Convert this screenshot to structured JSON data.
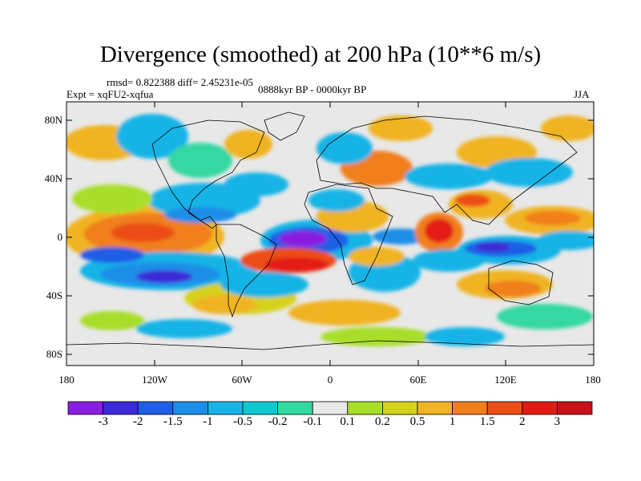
{
  "title": "Divergence (smoothed) at 200 hPa (10**6 m/s)",
  "stats": "rmsd= 0.822388 diff= 2.45231e-05",
  "experiment": "Expt = xqFU2-xqfua",
  "period": "0888kyr BP - 0000kyr BP",
  "season": "JJA",
  "lat_labels": [
    "80N",
    "40N",
    "0",
    "40S",
    "80S"
  ],
  "lon_labels": [
    "180",
    "120W",
    "60W",
    "0",
    "60E",
    "120E",
    "180"
  ],
  "colorbar": {
    "labels": [
      "-3",
      "-2",
      "-1.5",
      "-1",
      "-0.5",
      "-0.2",
      "-0.1",
      "0.1",
      "0.2",
      "0.5",
      "1",
      "1.5",
      "2",
      "3"
    ],
    "colors": [
      "#8a1ee0",
      "#3c2ad6",
      "#1f5ee6",
      "#1c8ee8",
      "#19b4e6",
      "#10c8cf",
      "#34d8a3",
      "#e8e8e8",
      "#a8de2a",
      "#d6d21c",
      "#f0b424",
      "#f07f1e",
      "#ec4e18",
      "#e31a14",
      "#c8101a"
    ]
  },
  "colors": {
    "background": "#e8e8e8"
  }
}
